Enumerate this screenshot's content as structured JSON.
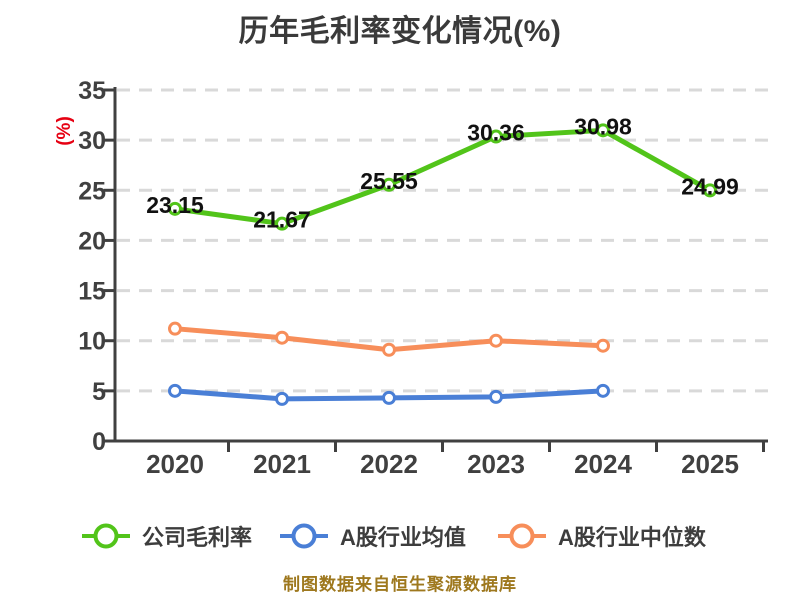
{
  "footer": "制图数据来自恒生聚源数据库",
  "style": {
    "background": "#ffffff",
    "axis_color": "#404040",
    "grid_color": "#d9d9d9",
    "title_color": "#3a3a3a",
    "data_label_color": "#111111",
    "ylabel_color": "#e60012",
    "footer_color": "#9e781e",
    "legend_text_color": "#3d3d3d"
  },
  "chart_data": {
    "type": "line",
    "title": "历年毛利率变化情况(%)",
    "xlabel": "",
    "ylabel": "(%)",
    "categories": [
      "2020",
      "2021",
      "2022",
      "2023",
      "2024",
      "2025"
    ],
    "ylim": [
      0,
      35
    ],
    "ytick_step": 5,
    "yticks": [
      0,
      5,
      10,
      15,
      20,
      25,
      30,
      35
    ],
    "grid": "horizontal-dashed",
    "legend_position": "bottom",
    "series": [
      {
        "name": "公司毛利率",
        "color": "#52c41a",
        "values": [
          23.15,
          21.67,
          25.55,
          30.36,
          30.98,
          24.99
        ],
        "data_labels": true
      },
      {
        "name": "A股行业均值",
        "color": "#4a7fd6",
        "values": [
          5.0,
          4.2,
          4.3,
          4.4,
          5.0,
          null
        ],
        "data_labels": false
      },
      {
        "name": "A股行业中位数",
        "color": "#f78e5a",
        "values": [
          11.2,
          10.3,
          9.1,
          10.0,
          9.5,
          null
        ],
        "data_labels": false
      }
    ]
  }
}
